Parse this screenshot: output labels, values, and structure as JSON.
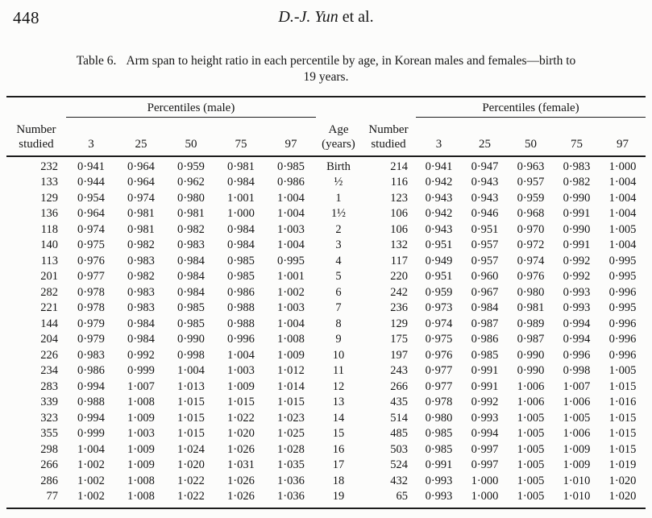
{
  "page": {
    "number": "448",
    "running_head_author": "D.-J. Yun",
    "running_head_rest": " et al."
  },
  "caption": {
    "label": "Table 6.",
    "line1_rest": "Arm span to height ratio in each percentile by age, in Korean males and females—birth to",
    "line2": "19 years."
  },
  "table": {
    "group_headers": {
      "male": "Percentiles (male)",
      "female": "Percentiles (female)"
    },
    "col_headers": {
      "number_line1": "Number",
      "number_line2": "studied",
      "age_line1": "Age",
      "age_line2": "(years)",
      "percentiles": [
        "3",
        "25",
        "50",
        "75",
        "97"
      ]
    },
    "rows": [
      {
        "male_n": "232",
        "male": [
          "0·941",
          "0·964",
          "0·959",
          "0·981",
          "0·985"
        ],
        "age": "Birth",
        "female_n": "214",
        "female": [
          "0·941",
          "0·947",
          "0·963",
          "0·983",
          "1·000"
        ]
      },
      {
        "male_n": "133",
        "male": [
          "0·944",
          "0·964",
          "0·962",
          "0·984",
          "0·986"
        ],
        "age": "½",
        "female_n": "116",
        "female": [
          "0·942",
          "0·943",
          "0·957",
          "0·982",
          "1·004"
        ]
      },
      {
        "male_n": "129",
        "male": [
          "0·954",
          "0·974",
          "0·980",
          "1·001",
          "1·004"
        ],
        "age": "1",
        "female_n": "123",
        "female": [
          "0·943",
          "0·943",
          "0·959",
          "0·990",
          "1·004"
        ]
      },
      {
        "male_n": "136",
        "male": [
          "0·964",
          "0·981",
          "0·981",
          "1·000",
          "1·004"
        ],
        "age": "1½",
        "female_n": "106",
        "female": [
          "0·942",
          "0·946",
          "0·968",
          "0·991",
          "1·004"
        ]
      },
      {
        "male_n": "118",
        "male": [
          "0·974",
          "0·981",
          "0·982",
          "0·984",
          "1·003"
        ],
        "age": "2",
        "female_n": "106",
        "female": [
          "0·943",
          "0·951",
          "0·970",
          "0·990",
          "1·005"
        ]
      },
      {
        "male_n": "140",
        "male": [
          "0·975",
          "0·982",
          "0·983",
          "0·984",
          "1·004"
        ],
        "age": "3",
        "female_n": "132",
        "female": [
          "0·951",
          "0·957",
          "0·972",
          "0·991",
          "1·004"
        ]
      },
      {
        "male_n": "113",
        "male": [
          "0·976",
          "0·983",
          "0·984",
          "0·985",
          "0·995"
        ],
        "age": "4",
        "female_n": "117",
        "female": [
          "0·949",
          "0·957",
          "0·974",
          "0·992",
          "0·995"
        ]
      },
      {
        "male_n": "201",
        "male": [
          "0·977",
          "0·982",
          "0·984",
          "0·985",
          "1·001"
        ],
        "age": "5",
        "female_n": "220",
        "female": [
          "0·951",
          "0·960",
          "0·976",
          "0·992",
          "0·995"
        ]
      },
      {
        "male_n": "282",
        "male": [
          "0·978",
          "0·983",
          "0·984",
          "0·986",
          "1·002"
        ],
        "age": "6",
        "female_n": "242",
        "female": [
          "0·959",
          "0·967",
          "0·980",
          "0·993",
          "0·996"
        ]
      },
      {
        "male_n": "221",
        "male": [
          "0·978",
          "0·983",
          "0·985",
          "0·988",
          "1·003"
        ],
        "age": "7",
        "female_n": "236",
        "female": [
          "0·973",
          "0·984",
          "0·981",
          "0·993",
          "0·995"
        ]
      },
      {
        "male_n": "144",
        "male": [
          "0·979",
          "0·984",
          "0·985",
          "0·988",
          "1·004"
        ],
        "age": "8",
        "female_n": "129",
        "female": [
          "0·974",
          "0·987",
          "0·989",
          "0·994",
          "0·996"
        ]
      },
      {
        "male_n": "204",
        "male": [
          "0·979",
          "0·984",
          "0·990",
          "0·996",
          "1·008"
        ],
        "age": "9",
        "female_n": "175",
        "female": [
          "0·975",
          "0·986",
          "0·987",
          "0·994",
          "0·996"
        ]
      },
      {
        "male_n": "226",
        "male": [
          "0·983",
          "0·992",
          "0·998",
          "1·004",
          "1·009"
        ],
        "age": "10",
        "female_n": "197",
        "female": [
          "0·976",
          "0·985",
          "0·990",
          "0·996",
          "0·996"
        ]
      },
      {
        "male_n": "234",
        "male": [
          "0·986",
          "0·999",
          "1·004",
          "1·003",
          "1·012"
        ],
        "age": "11",
        "female_n": "243",
        "female": [
          "0·977",
          "0·991",
          "0·990",
          "0·998",
          "1·005"
        ]
      },
      {
        "male_n": "283",
        "male": [
          "0·994",
          "1·007",
          "1·013",
          "1·009",
          "1·014"
        ],
        "age": "12",
        "female_n": "266",
        "female": [
          "0·977",
          "0·991",
          "1·006",
          "1·007",
          "1·015"
        ]
      },
      {
        "male_n": "339",
        "male": [
          "0·988",
          "1·008",
          "1·015",
          "1·015",
          "1·015"
        ],
        "age": "13",
        "female_n": "435",
        "female": [
          "0·978",
          "0·992",
          "1·006",
          "1·006",
          "1·016"
        ]
      },
      {
        "male_n": "323",
        "male": [
          "0·994",
          "1·009",
          "1·015",
          "1·022",
          "1·023"
        ],
        "age": "14",
        "female_n": "514",
        "female": [
          "0·980",
          "0·993",
          "1·005",
          "1·005",
          "1·015"
        ]
      },
      {
        "male_n": "355",
        "male": [
          "0·999",
          "1·003",
          "1·015",
          "1·020",
          "1·025"
        ],
        "age": "15",
        "female_n": "485",
        "female": [
          "0·985",
          "0·994",
          "1·005",
          "1·006",
          "1·015"
        ]
      },
      {
        "male_n": "298",
        "male": [
          "1·004",
          "1·009",
          "1·024",
          "1·026",
          "1·028"
        ],
        "age": "16",
        "female_n": "503",
        "female": [
          "0·985",
          "0·997",
          "1·005",
          "1·009",
          "1·015"
        ]
      },
      {
        "male_n": "266",
        "male": [
          "1·002",
          "1·009",
          "1·020",
          "1·031",
          "1·035"
        ],
        "age": "17",
        "female_n": "524",
        "female": [
          "0·991",
          "0·997",
          "1·005",
          "1·009",
          "1·019"
        ]
      },
      {
        "male_n": "286",
        "male": [
          "1·002",
          "1·008",
          "1·022",
          "1·026",
          "1·036"
        ],
        "age": "18",
        "female_n": "432",
        "female": [
          "0·993",
          "1·000",
          "1·005",
          "1·010",
          "1·020"
        ]
      },
      {
        "male_n": "77",
        "male": [
          "1·002",
          "1·008",
          "1·022",
          "1·026",
          "1·036"
        ],
        "age": "19",
        "female_n": "65",
        "female": [
          "0·993",
          "1·000",
          "1·005",
          "1·010",
          "1·020"
        ]
      }
    ]
  }
}
